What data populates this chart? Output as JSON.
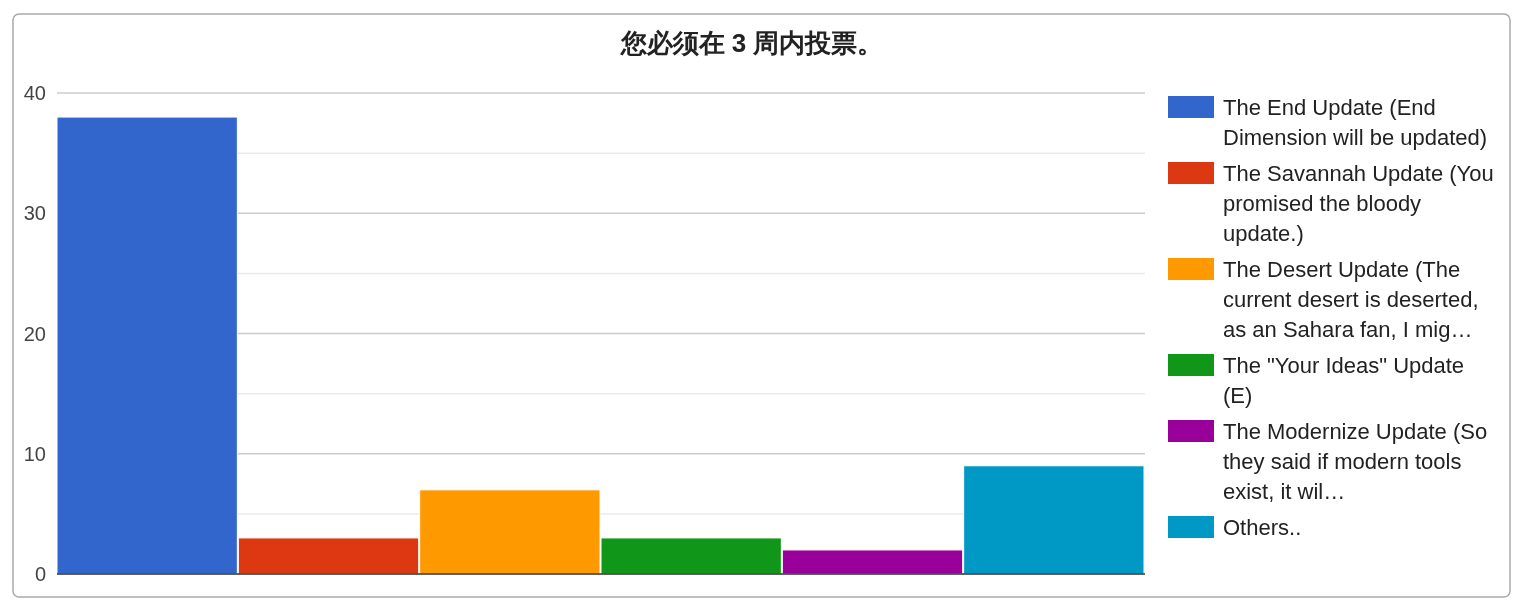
{
  "chart_data": {
    "type": "bar",
    "title": "您必须在 3 周内投票。",
    "categories": [
      null
    ],
    "series": [
      {
        "name": "The End Update (End Dimension will be updated)",
        "color": "#3366cc",
        "values": [
          38
        ]
      },
      {
        "name": "The Savannah Update (You promised the bloody update.)",
        "color": "#dc3912",
        "values": [
          3
        ]
      },
      {
        "name": "The Desert Update (The current desert is deserted, as an Sahara fan, I mig…",
        "color": "#ff9900",
        "values": [
          7
        ]
      },
      {
        "name": "The \"Your Ideas\" Update (E)",
        "color": "#109618",
        "values": [
          3
        ]
      },
      {
        "name": "The Modernize Update (So they said if modern tools exist, it wil…",
        "color": "#990099",
        "values": [
          2
        ]
      },
      {
        "name": "Others..",
        "color": "#0099c6",
        "values": [
          9
        ]
      }
    ],
    "ylim": [
      0,
      40
    ],
    "yticks": [
      0,
      {
        "value": 5,
        "label": null
      },
      10,
      {
        "value": 15,
        "label": null
      },
      20,
      {
        "value": 25,
        "label": null
      },
      30,
      {
        "value": 35,
        "label": null
      },
      40
    ],
    "grid": "y",
    "legend": "right"
  }
}
